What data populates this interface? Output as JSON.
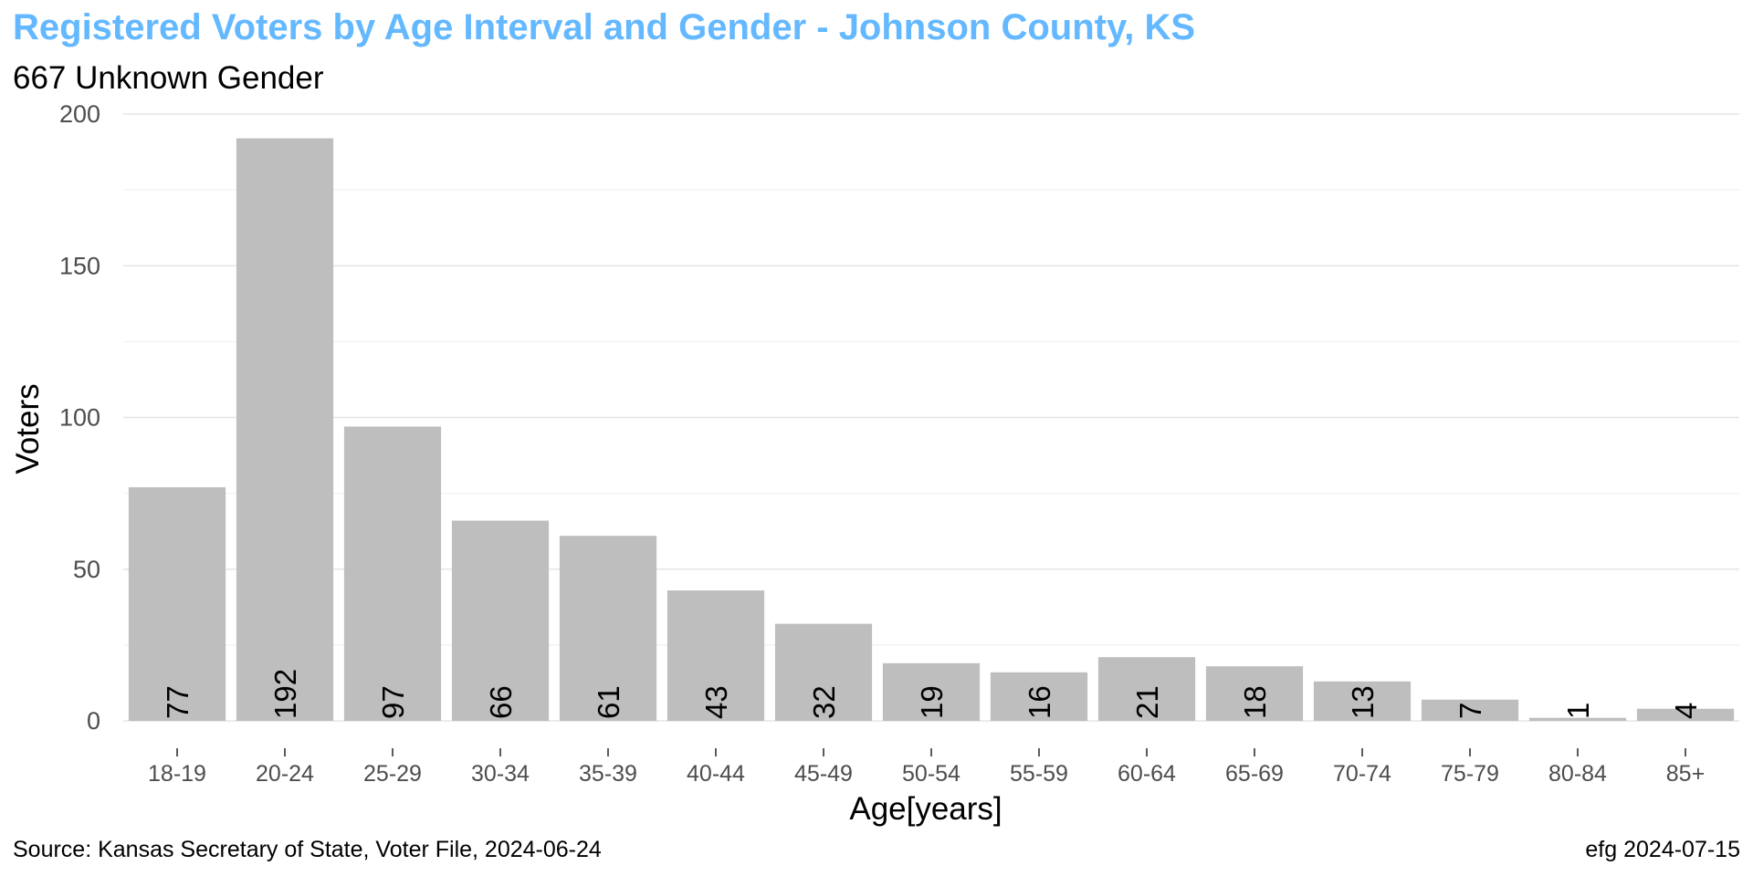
{
  "chart_data": {
    "type": "bar",
    "title": "Registered Voters by Age Interval and Gender - Johnson County, KS",
    "subtitle": "667 Unknown Gender",
    "xlabel": "Age[years]",
    "ylabel": "Voters",
    "categories": [
      "18-19",
      "20-24",
      "25-29",
      "30-34",
      "35-39",
      "40-44",
      "45-49",
      "50-54",
      "55-59",
      "60-64",
      "65-69",
      "70-74",
      "75-79",
      "80-84",
      "85+"
    ],
    "values": [
      77,
      192,
      97,
      66,
      61,
      43,
      32,
      19,
      16,
      21,
      18,
      13,
      7,
      1,
      4
    ],
    "ylim": [
      0,
      200
    ],
    "yticks": [
      0,
      50,
      100,
      150,
      200
    ],
    "grid": true,
    "bar_color": "#bebebe",
    "title_color": "#63b8ff",
    "source": "Source:  Kansas Secretary of State, Voter File, 2024-06-24",
    "credit": "efg 2024-07-15"
  }
}
